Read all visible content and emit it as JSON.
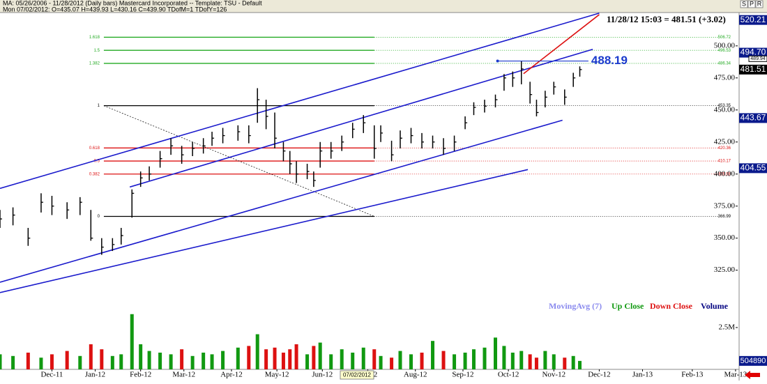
{
  "header": {
    "title": "MA: 05/26/2006 - 11/28/2012 (Daily bars)   Mastercard Incorporated   --   Template: TSU - Default",
    "subtitle": "Mon 07/02/2012:  O=435.07  H=439.93  L=430.16  C=439.90  TDofM=1  TDofY=126",
    "toolbar": [
      "S",
      "P",
      "R"
    ]
  },
  "chart_data": {
    "type": "ohlc",
    "info": "11/28/12 15:03 = 481.51 (+3.02)",
    "cursor_date": "07/02/2012",
    "xlim": [
      0,
      341
    ],
    "xticks": [
      {
        "value": 24,
        "label": "Dec-11"
      },
      {
        "value": 44,
        "label": "Jan-12"
      },
      {
        "value": 65,
        "label": "Feb-12"
      },
      {
        "value": 85,
        "label": "Mar-12"
      },
      {
        "value": 107,
        "label": "Apr-12"
      },
      {
        "value": 128,
        "label": "May-12"
      },
      {
        "value": 149,
        "label": "Jun-12"
      },
      {
        "value": 170,
        "label": "Jul-12"
      },
      {
        "value": 192,
        "label": "Aug-12"
      },
      {
        "value": 214,
        "label": "Sep-12"
      },
      {
        "value": 235,
        "label": "Oct-12"
      },
      {
        "value": 256,
        "label": "Nov-12"
      },
      {
        "value": 277,
        "label": "Dec-12"
      },
      {
        "value": 297,
        "label": "Jan-13"
      },
      {
        "value": 320,
        "label": "Feb-13"
      },
      {
        "value": 340,
        "label": "Mar-13"
      }
    ],
    "ylim": [
      302,
      526
    ],
    "yticks": [
      {
        "value": 325,
        "label": "325.00"
      },
      {
        "value": 350,
        "label": "350.00"
      },
      {
        "value": 375,
        "label": "375.00"
      },
      {
        "value": 400,
        "label": "400.00"
      },
      {
        "value": 425,
        "label": "425.00"
      },
      {
        "value": 450,
        "label": "450.00"
      },
      {
        "value": 475,
        "label": "475.00"
      },
      {
        "value": 500,
        "label": "500.00"
      }
    ],
    "x": [
      0,
      6,
      13,
      19,
      24,
      31,
      37,
      42,
      47,
      52,
      56,
      61,
      65,
      69,
      74,
      79,
      84,
      89,
      94,
      98,
      103,
      110,
      115,
      119,
      123,
      127,
      131,
      134,
      137,
      142,
      145,
      148,
      153,
      158,
      163,
      168,
      173,
      176,
      181,
      185,
      190,
      195,
      200,
      205,
      210,
      215,
      219,
      224,
      229,
      233,
      237,
      241,
      245,
      248,
      252,
      256,
      261,
      265,
      268
    ],
    "high": [
      372,
      374,
      358,
      385,
      383,
      378,
      382,
      372,
      350,
      350,
      358,
      388,
      402,
      406,
      418,
      428,
      422,
      425,
      428,
      433,
      436,
      438,
      438,
      467,
      458,
      448,
      425,
      418,
      410,
      408,
      402,
      425,
      425,
      430,
      440,
      446,
      438,
      438,
      426,
      434,
      436,
      432,
      430,
      428,
      430,
      445,
      456,
      458,
      462,
      478,
      480,
      488,
      472,
      458,
      465,
      472,
      466,
      479,
      484
    ],
    "low": [
      358,
      360,
      344,
      370,
      368,
      365,
      368,
      348,
      337,
      340,
      345,
      366,
      390,
      395,
      405,
      415,
      408,
      414,
      416,
      422,
      424,
      426,
      424,
      440,
      435,
      420,
      410,
      400,
      393,
      396,
      390,
      405,
      412,
      418,
      428,
      432,
      412,
      425,
      410,
      420,
      424,
      420,
      420,
      415,
      418,
      435,
      446,
      448,
      452,
      465,
      468,
      470,
      455,
      445,
      452,
      462,
      454,
      468,
      476
    ],
    "close": [
      365,
      368,
      350,
      378,
      375,
      372,
      378,
      350,
      343,
      345,
      352,
      385,
      397,
      400,
      412,
      422,
      415,
      420,
      422,
      428,
      430,
      433,
      430,
      458,
      445,
      428,
      418,
      408,
      400,
      402,
      395,
      418,
      418,
      425,
      435,
      440,
      420,
      432,
      415,
      428,
      430,
      425,
      425,
      420,
      425,
      440,
      452,
      453,
      458,
      475,
      475,
      482,
      462,
      448,
      460,
      468,
      460,
      475,
      481.51
    ],
    "volume": [
      900000,
      800000,
      1000000,
      700000,
      900000,
      1100000,
      800000,
      1500000,
      1200000,
      800000,
      900000,
      3300000,
      1500000,
      1100000,
      1000000,
      900000,
      1200000,
      800000,
      1000000,
      900000,
      1100000,
      1300000,
      1400000,
      2100000,
      1200000,
      1300000,
      1000000,
      1200000,
      1500000,
      900000,
      1400000,
      1600000,
      900000,
      1200000,
      1000000,
      1300000,
      1200000,
      800000,
      700000,
      1100000,
      900000,
      1000000,
      1700000,
      1100000,
      900000,
      1000000,
      1200000,
      1300000,
      1900000,
      1400000,
      1000000,
      1100000,
      900000,
      700000,
      1100000,
      900000,
      700000,
      800000,
      504890
    ],
    "up_color": "#119911",
    "down_color": "#dd1111",
    "bar_color": "#000000",
    "volume_ylim": [
      0,
      3540000
    ],
    "volume_yticks": [
      {
        "value": 2500000,
        "label": "2.5M"
      }
    ],
    "volume_tag": 504890,
    "price_tags": {
      "values": [
        520.21,
        494.7,
        489.94,
        481.51,
        443.67,
        404.55
      ],
      "value_labels": [
        "520.21",
        "494.70",
        "489.94",
        "481.51",
        "443.67",
        "404.55"
      ],
      "colors": [
        "#0a1a8c",
        "#0a1a8c",
        "#ffffff",
        "#000000",
        "#0a1a8c",
        "#0a1a8c"
      ]
    },
    "fib": {
      "start": 48,
      "end": 173,
      "ratios": [
        1.618,
        1.5,
        1.382,
        1,
        0.618,
        0.5,
        0.382,
        0
      ],
      "prices": [
        506.72,
        496.53,
        486.34,
        453.35,
        420.36,
        410.17,
        399.98,
        366.99
      ],
      "colors": [
        "#22aa22",
        "#22aa22",
        "#22aa22",
        "#000000",
        "#dd1111",
        "#dd1111",
        "#dd1111",
        "#000000"
      ]
    },
    "trendlines": [
      {
        "color": "#1a1acc",
        "points": [
          [
            0,
            388.8
          ],
          [
            277,
            525.5
          ]
        ]
      },
      {
        "color": "#1a1acc",
        "points": [
          [
            60,
            389.9
          ],
          [
            274,
            497.3
          ]
        ]
      },
      {
        "color": "#1a1acc",
        "points": [
          [
            0,
            315.6
          ],
          [
            260,
            442
          ]
        ]
      },
      {
        "color": "#1a1acc",
        "points": [
          [
            0,
            307.5
          ],
          [
            244,
            403.5
          ]
        ]
      },
      {
        "color": "#dd1111",
        "points": [
          [
            242,
            478.3
          ],
          [
            277,
            524.4
          ]
        ]
      }
    ],
    "annotation": {
      "value": 488.19,
      "start": 230,
      "end": 272,
      "color": "#1a3acc"
    },
    "legend": [
      {
        "name": "MovingAvg (7)",
        "color": "#8a8aee"
      },
      {
        "name": "Up Close",
        "color": "#119911"
      },
      {
        "name": "Down Close",
        "color": "#dd1111"
      },
      {
        "name": "Volume",
        "color": "#000080"
      }
    ]
  }
}
